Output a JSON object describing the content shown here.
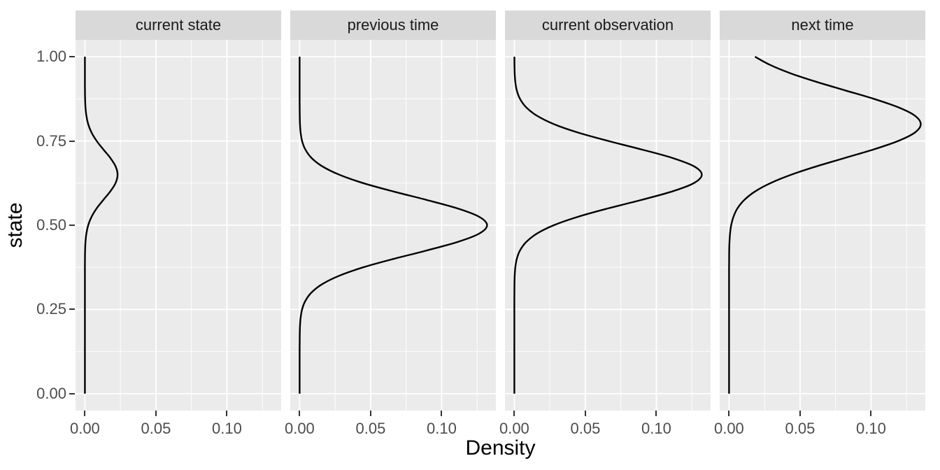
{
  "chart_data": {
    "type": "line",
    "title": "",
    "xlabel": "Density",
    "ylabel": "state",
    "orientation": "horizontal-density (density on x axis, state on y axis)",
    "grid": true,
    "legend": "none",
    "xlim": [
      -0.0066,
      0.1382
    ],
    "ylim": [
      -0.05,
      1.05
    ],
    "x_ticks": [
      0.0,
      0.05,
      0.1
    ],
    "x_tick_labels": [
      "0.00",
      "0.05",
      "0.10"
    ],
    "y_ticks": [
      0.0,
      0.25,
      0.5,
      0.75,
      1.0
    ],
    "y_tick_labels": [
      "0.00",
      "0.25",
      "0.50",
      "0.75",
      "1.00"
    ],
    "colors": {
      "background": "#FFFFFF",
      "panel_bg": "#EBEBEB",
      "strip_bg": "#D9D9D9",
      "strip_text": "#1A1A1A",
      "grid": "#FFFFFF",
      "curve": "#000000",
      "tick_text": "#4D4D4D",
      "tick_mark": "#333333",
      "axis_title": "#000000"
    },
    "facets": [
      {
        "label": "current state",
        "peak": {
          "state": 0.65,
          "density": 0.023
        },
        "points": [
          [
            0,
            0
          ],
          [
            0.05,
            0
          ],
          [
            0.1,
            0
          ],
          [
            0.15,
            0
          ],
          [
            0.2,
            0
          ],
          [
            0.25,
            0
          ],
          [
            0.3,
            0
          ],
          [
            0.325,
            0
          ],
          [
            0.35,
            0
          ],
          [
            0.375,
            1e-05
          ],
          [
            0.4,
            4e-05
          ],
          [
            0.425,
            0.00013
          ],
          [
            0.45,
            0.00039
          ],
          [
            0.475,
            0.00101
          ],
          [
            0.5,
            0.00232
          ],
          [
            0.525,
            0.00467
          ],
          [
            0.55,
            0.00829
          ],
          [
            0.575,
            0.01296
          ],
          [
            0.6,
            0.01782
          ],
          [
            0.625,
            0.02158
          ],
          [
            0.65,
            0.023
          ],
          [
            0.675,
            0.02158
          ],
          [
            0.7,
            0.01782
          ],
          [
            0.725,
            0.01296
          ],
          [
            0.75,
            0.00829
          ],
          [
            0.775,
            0.00467
          ],
          [
            0.8,
            0.00232
          ],
          [
            0.825,
            0.00101
          ],
          [
            0.85,
            0.00039
          ],
          [
            0.875,
            0.00013
          ],
          [
            0.9,
            4e-05
          ],
          [
            0.925,
            1e-05
          ],
          [
            0.95,
            0
          ],
          [
            1,
            0
          ]
        ]
      },
      {
        "label": "previous time",
        "peak": {
          "state": 0.5,
          "density": 0.132
        },
        "points": [
          [
            0,
            0
          ],
          [
            0.05,
            0
          ],
          [
            0.1,
            0
          ],
          [
            0.125,
            1e-05
          ],
          [
            0.15,
            3e-05
          ],
          [
            0.175,
            9e-05
          ],
          [
            0.2,
            0.00026
          ],
          [
            0.225,
            0.0007
          ],
          [
            0.25,
            0.00174
          ],
          [
            0.275,
            0.00397
          ],
          [
            0.3,
            0.00829
          ],
          [
            0.325,
            0.01585
          ],
          [
            0.35,
            0.02781
          ],
          [
            0.375,
            0.04475
          ],
          [
            0.4,
            0.06609
          ],
          [
            0.425,
            0.08944
          ],
          [
            0.45,
            0.11103
          ],
          [
            0.475,
            0.12642
          ],
          [
            0.5,
            0.132
          ],
          [
            0.525,
            0.12642
          ],
          [
            0.55,
            0.11103
          ],
          [
            0.575,
            0.08944
          ],
          [
            0.6,
            0.06609
          ],
          [
            0.625,
            0.04475
          ],
          [
            0.65,
            0.02781
          ],
          [
            0.675,
            0.01585
          ],
          [
            0.7,
            0.00829
          ],
          [
            0.725,
            0.00397
          ],
          [
            0.75,
            0.00174
          ],
          [
            0.775,
            0.0007
          ],
          [
            0.8,
            0.00026
          ],
          [
            0.825,
            9e-05
          ],
          [
            0.85,
            3e-05
          ],
          [
            0.875,
            1e-05
          ],
          [
            0.9,
            0
          ],
          [
            0.95,
            0
          ],
          [
            1,
            0
          ]
        ]
      },
      {
        "label": "current observation",
        "peak": {
          "state": 0.65,
          "density": 0.132
        },
        "points": [
          [
            0,
            0
          ],
          [
            0.05,
            0
          ],
          [
            0.1,
            0
          ],
          [
            0.15,
            0
          ],
          [
            0.2,
            0
          ],
          [
            0.25,
            0
          ],
          [
            0.275,
            1e-05
          ],
          [
            0.3,
            3e-05
          ],
          [
            0.325,
            9e-05
          ],
          [
            0.35,
            0.00026
          ],
          [
            0.375,
            0.0007
          ],
          [
            0.4,
            0.00174
          ],
          [
            0.425,
            0.00397
          ],
          [
            0.45,
            0.00829
          ],
          [
            0.475,
            0.01585
          ],
          [
            0.5,
            0.02781
          ],
          [
            0.525,
            0.04475
          ],
          [
            0.55,
            0.06609
          ],
          [
            0.575,
            0.08944
          ],
          [
            0.6,
            0.11103
          ],
          [
            0.625,
            0.12642
          ],
          [
            0.65,
            0.132
          ],
          [
            0.675,
            0.12642
          ],
          [
            0.7,
            0.11103
          ],
          [
            0.725,
            0.08944
          ],
          [
            0.75,
            0.06609
          ],
          [
            0.775,
            0.04475
          ],
          [
            0.8,
            0.02781
          ],
          [
            0.825,
            0.01585
          ],
          [
            0.85,
            0.00829
          ],
          [
            0.875,
            0.00397
          ],
          [
            0.9,
            0.00174
          ],
          [
            0.925,
            0.0007
          ],
          [
            0.95,
            0.00026
          ],
          [
            0.975,
            9e-05
          ],
          [
            1,
            3e-05
          ]
        ]
      },
      {
        "label": "next time",
        "peak": {
          "state": 0.8,
          "density": 0.135
        },
        "points": [
          [
            0,
            0
          ],
          [
            0.05,
            0
          ],
          [
            0.1,
            0
          ],
          [
            0.15,
            0
          ],
          [
            0.2,
            0
          ],
          [
            0.25,
            0
          ],
          [
            0.3,
            0
          ],
          [
            0.325,
            0
          ],
          [
            0.35,
            1e-05
          ],
          [
            0.375,
            2e-05
          ],
          [
            0.4,
            5e-05
          ],
          [
            0.425,
            0.00012
          ],
          [
            0.45,
            0.0003
          ],
          [
            0.475,
            0.00069
          ],
          [
            0.5,
            0.0015
          ],
          [
            0.525,
            0.00308
          ],
          [
            0.55,
            0.00593
          ],
          [
            0.575,
            0.01074
          ],
          [
            0.6,
            0.01827
          ],
          [
            0.625,
            0.0292
          ],
          [
            0.65,
            0.04383
          ],
          [
            0.675,
            0.06181
          ],
          [
            0.7,
            0.08188
          ],
          [
            0.725,
            0.1019
          ],
          [
            0.75,
            0.11914
          ],
          [
            0.775,
            0.13085
          ],
          [
            0.8,
            0.135
          ],
          [
            0.825,
            0.13085
          ],
          [
            0.85,
            0.11914
          ],
          [
            0.875,
            0.1019
          ],
          [
            0.9,
            0.08188
          ],
          [
            0.925,
            0.06181
          ],
          [
            0.95,
            0.04383
          ],
          [
            0.975,
            0.0292
          ],
          [
            1,
            0.01827
          ]
        ]
      }
    ]
  }
}
